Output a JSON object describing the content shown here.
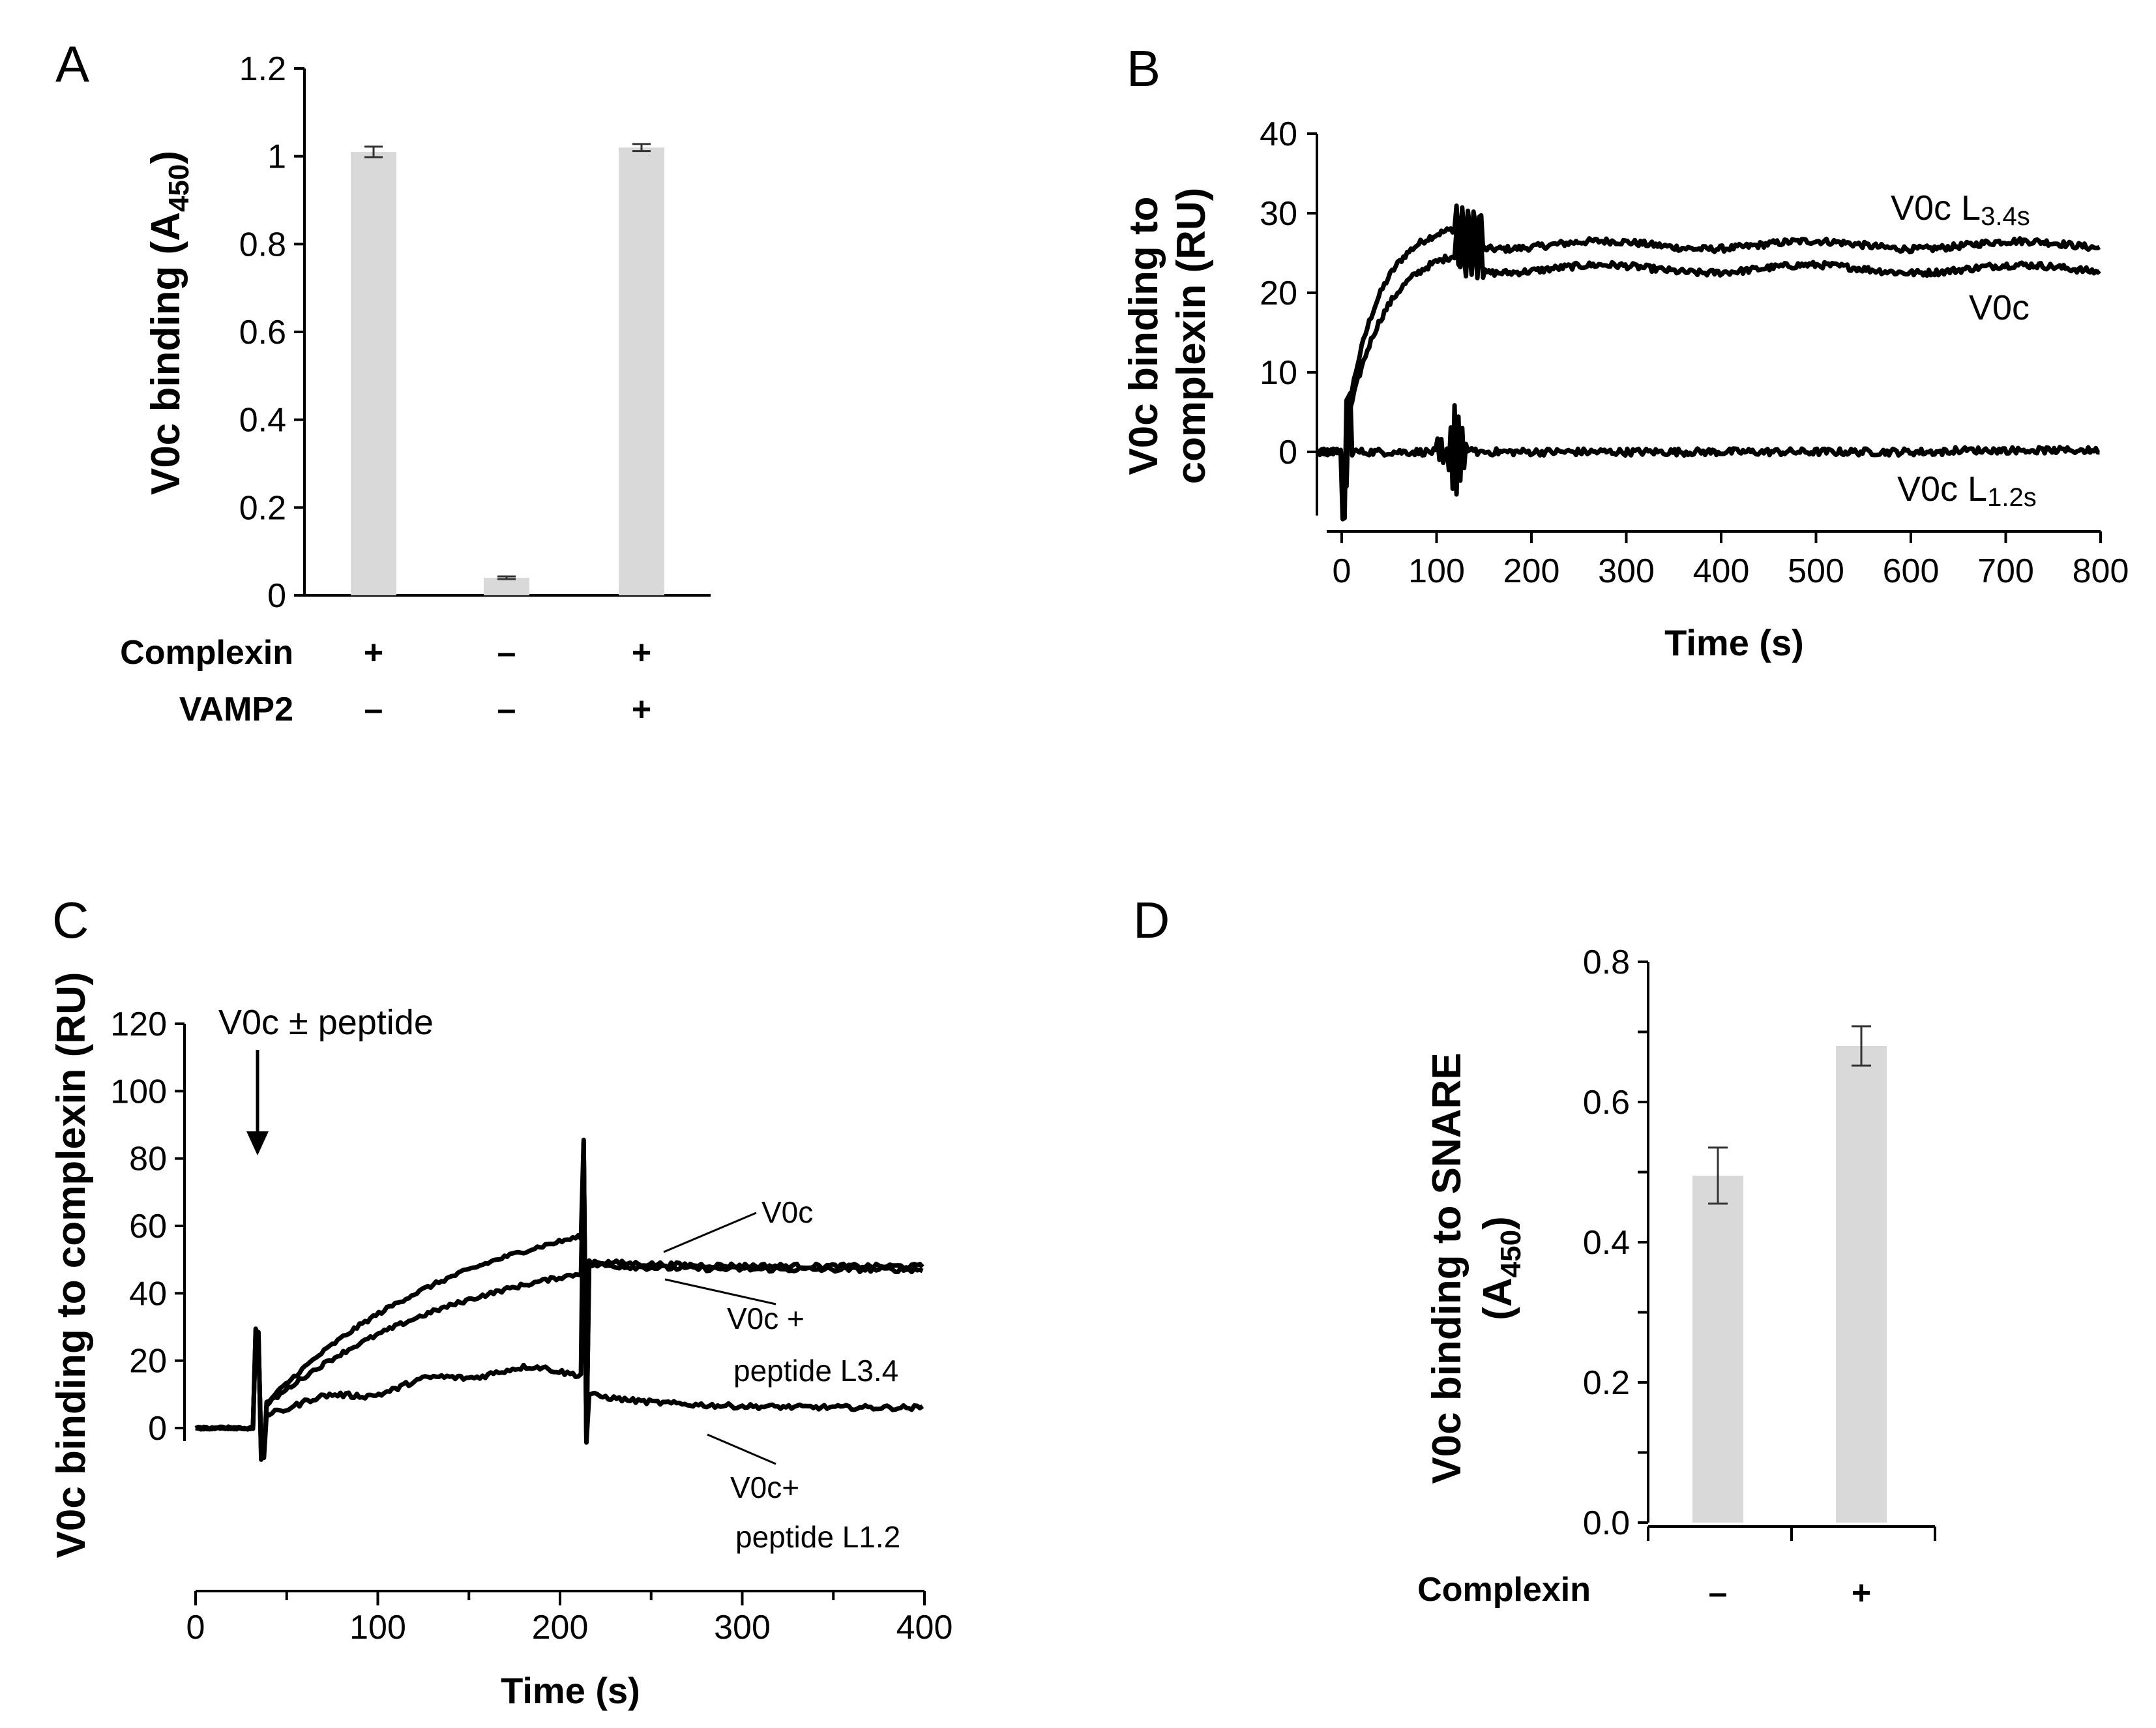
{
  "chart_data": [
    {
      "id": "A",
      "panel_label": "A",
      "type": "bar",
      "ylabel": "V0c binding (A",
      "ylabel_sub": "450",
      "ylabel_close": ")",
      "ylim": [
        0,
        1.2
      ],
      "yticks": [
        "0",
        "0.2",
        "0.4",
        "0.6",
        "0.8",
        "1",
        "1.2"
      ],
      "values": [
        1.01,
        0.04,
        1.02
      ],
      "errors": [
        0.012,
        0.003,
        0.008
      ],
      "conditions": [
        {
          "name": "Complexin",
          "signs": [
            "+",
            "–",
            "+"
          ]
        },
        {
          "name": "VAMP2",
          "signs": [
            "–",
            "–",
            "+"
          ]
        }
      ],
      "bar_color": "#d9d9d9"
    },
    {
      "id": "B",
      "panel_label": "B",
      "type": "line",
      "ylabel_line1": "V0c binding to",
      "ylabel_line2": "complexin (RU)",
      "xlabel": "Time (s)",
      "ylim": [
        -10,
        40
      ],
      "xlim": [
        -10,
        800
      ],
      "yticks": [
        "0",
        "10",
        "20",
        "30",
        "40"
      ],
      "xticks": [
        "0",
        "100",
        "200",
        "300",
        "400",
        "500",
        "600",
        "700",
        "800"
      ],
      "series": [
        {
          "name": "V0c L",
          "sub": "3.4s",
          "plateau": 26,
          "peak": 29,
          "tau": 35
        },
        {
          "name": "V0c",
          "sub": "",
          "plateau": 23,
          "peak": 26,
          "tau": 40
        },
        {
          "name": "V0c L",
          "sub": "1.2s",
          "plateau": 0,
          "peak": 0,
          "tau": 1
        }
      ]
    },
    {
      "id": "C",
      "panel_label": "C",
      "type": "line",
      "ylabel": "V0c binding to complexin (RU)",
      "xlabel": "Time (s)",
      "ylim": [
        -5,
        120
      ],
      "xlim": [
        0,
        400
      ],
      "yticks": [
        "0",
        "20",
        "40",
        "60",
        "80",
        "100",
        "120"
      ],
      "xticks": [
        "0",
        "100",
        "200",
        "300",
        "400"
      ],
      "injection_label": "V0c ± peptide",
      "injection_time": 35,
      "series": [
        {
          "name": "V0c",
          "end_assoc": 57,
          "plateau": 48,
          "label_lines": [
            "V0c"
          ]
        },
        {
          "name": "V0c + peptide L3.4",
          "end_assoc": 46,
          "plateau": 47,
          "label_lines": [
            "V0c +",
            "peptide L3.4"
          ]
        },
        {
          "name": "V0c+ peptide L1.2",
          "end_assoc": 17,
          "plateau": 6,
          "label_lines": [
            "V0c+",
            "peptide L1.2"
          ]
        }
      ]
    },
    {
      "id": "D",
      "panel_label": "D",
      "type": "bar",
      "ylabel_line1": "V0c binding to SNARE",
      "ylabel_line2": "(A",
      "ylabel_sub": "450",
      "ylabel_close": ")",
      "ylim": [
        0,
        0.8
      ],
      "yticks": [
        "0.0",
        "0.2",
        "0.4",
        "0.6",
        "0.8"
      ],
      "values": [
        0.495,
        0.68
      ],
      "errors": [
        0.04,
        0.028
      ],
      "conditions": [
        {
          "name": "Complexin",
          "signs": [
            "–",
            "+"
          ]
        }
      ],
      "bar_color": "#d9d9d9"
    }
  ]
}
